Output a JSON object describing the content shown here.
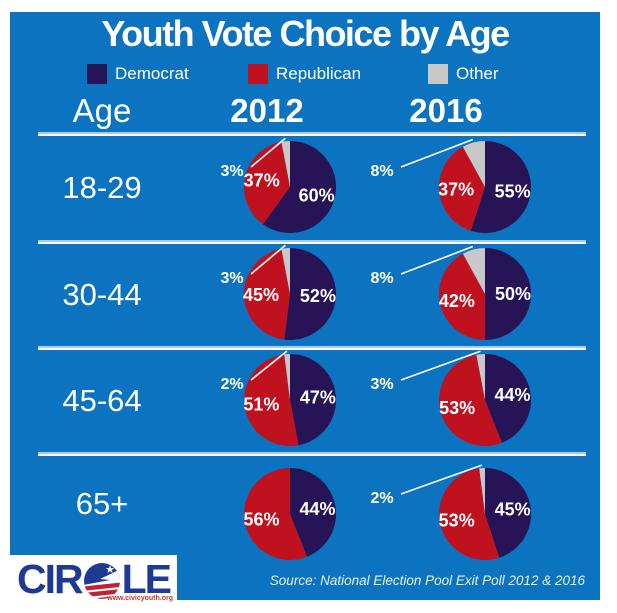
{
  "title": "Youth Vote Choice by Age",
  "legend": [
    {
      "label": "Democrat",
      "color": "#261457"
    },
    {
      "label": "Republican",
      "color": "#C0111F"
    },
    {
      "label": "Other",
      "color": "#C8C8C9"
    }
  ],
  "columns": {
    "age": "Age",
    "y2012": "2012",
    "y2016": "2016"
  },
  "source": "Source: National Election Pool Exit Poll 2012 & 2016",
  "logo": {
    "name": "CIRCLE",
    "text_start": "CIR",
    "text_end": "LE",
    "website": "www.civicyouth.org"
  },
  "colors": {
    "background": "#0B73BF",
    "democrat": "#261457",
    "republican": "#C0111F",
    "other": "#C8C8C9",
    "divider": "#FFFFFF"
  },
  "chart_data": {
    "type": "pie",
    "title": "Youth Vote Choice by Age",
    "legend": [
      "Democrat",
      "Republican",
      "Other"
    ],
    "columns": [
      "2012",
      "2016"
    ],
    "rows": [
      {
        "age": "18-29",
        "2012": {
          "Democrat": 60,
          "Republican": 37,
          "Other": 3
        },
        "2016": {
          "Democrat": 55,
          "Republican": 37,
          "Other": 8
        }
      },
      {
        "age": "30-44",
        "2012": {
          "Democrat": 52,
          "Republican": 45,
          "Other": 3
        },
        "2016": {
          "Democrat": 50,
          "Republican": 42,
          "Other": 8
        }
      },
      {
        "age": "45-64",
        "2012": {
          "Democrat": 47,
          "Republican": 51,
          "Other": 2
        },
        "2016": {
          "Democrat": 44,
          "Republican": 53,
          "Other": 3
        }
      },
      {
        "age": "65+",
        "2012": {
          "Democrat": 44,
          "Republican": 56,
          "Other": 0
        },
        "2016": {
          "Democrat": 45,
          "Republican": 53,
          "Other": 2
        }
      }
    ]
  }
}
